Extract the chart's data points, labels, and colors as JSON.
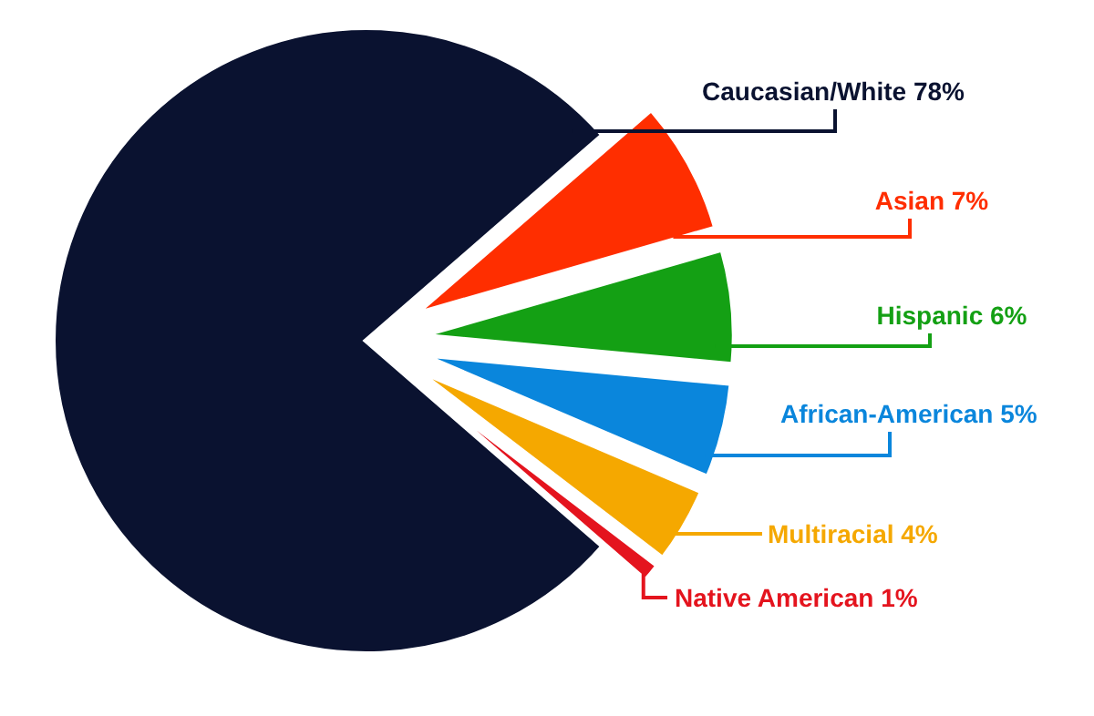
{
  "chart_data": {
    "type": "pie",
    "categories": [
      "Caucasian/White",
      "Asian",
      "Hispanic",
      "African-American",
      "Multiracial",
      "Native American"
    ],
    "values": [
      78,
      7,
      6,
      5,
      4,
      1
    ],
    "value_labels": [
      "78%",
      "7%",
      "6%",
      "5%",
      "4%",
      "1%"
    ],
    "colors": [
      "#0a1230",
      "#ff2e00",
      "#14a014",
      "#0a86dc",
      "#f5a800",
      "#e4141e"
    ]
  }
}
